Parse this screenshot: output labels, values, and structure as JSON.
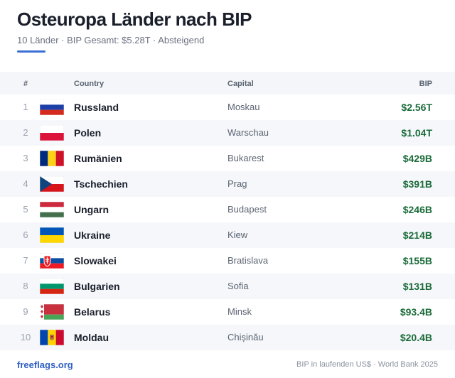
{
  "header": {
    "title": "Osteuropa Länder nach BIP",
    "subtitle": "10 Länder · BIP Gesamt: $5.28T · Absteigend"
  },
  "table": {
    "columns": [
      "#",
      "Country",
      "Capital",
      "BIP"
    ],
    "rows": [
      [
        1,
        "Russland",
        "Moskau",
        "$2.56T"
      ],
      [
        2,
        "Polen",
        "Warschau",
        "$1.04T"
      ],
      [
        3,
        "Rumänien",
        "Bukarest",
        "$429B"
      ],
      [
        4,
        "Tschechien",
        "Prag",
        "$391B"
      ],
      [
        5,
        "Ungarn",
        "Budapest",
        "$246B"
      ],
      [
        6,
        "Ukraine",
        "Kiew",
        "$214B"
      ],
      [
        7,
        "Slowakei",
        "Bratislava",
        "$155B"
      ],
      [
        8,
        "Bulgarien",
        "Sofia",
        "$131B"
      ],
      [
        9,
        "Belarus",
        "Minsk",
        "$93.4B"
      ],
      [
        10,
        "Moldau",
        "Chișinău",
        "$20.4B"
      ]
    ]
  },
  "footer": {
    "link": "freeflags.org",
    "note": "BIP in laufenden US$ · World Bank 2025"
  }
}
